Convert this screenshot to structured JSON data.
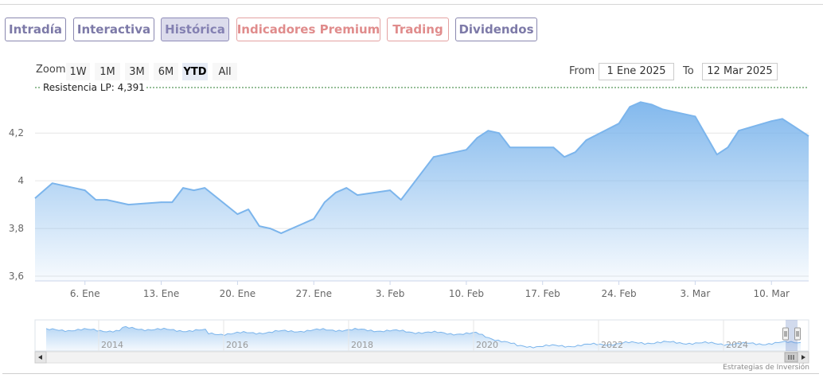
{
  "tabs": [
    {
      "label": "Intradía"
    },
    {
      "label": "Interactiva"
    },
    {
      "label": "Histórica"
    },
    {
      "label": "Indicadores Premium"
    },
    {
      "label": "Trading"
    },
    {
      "label": "Dividendos"
    }
  ],
  "active_tab": "Histórica",
  "range_selector": {
    "zoom_label": "Zoom",
    "buttons": [
      "1W",
      "1M",
      "3M",
      "6M",
      "YTD",
      "All"
    ],
    "active": "YTD",
    "from_label": "From",
    "from_value": "1 Ene 2025",
    "to_label": "To",
    "to_value": "12 Mar 2025"
  },
  "credits": "Estrategias de Inversión",
  "colors": {
    "series_line": "#7cb5ec",
    "tab_text": "#7d7aa8",
    "tab_premium_text": "#e08c8c",
    "resistance_line": "#2e7d32"
  },
  "chart_data": {
    "type": "area",
    "x_unit": "date",
    "y_tick_labels": [
      "3,6",
      "3,8",
      "4",
      "4,2"
    ],
    "y_ticks": [
      3.6,
      3.8,
      4.0,
      4.2
    ],
    "ylim": [
      3.58,
      4.391
    ],
    "x_tick_labels": [
      "6. Ene",
      "13. Ene",
      "20. Ene",
      "27. Ene",
      "3. Feb",
      "10. Feb",
      "17. Feb",
      "24. Feb",
      "3. Mar",
      "10. Mar"
    ],
    "x_ticks": [
      "2025-01-06",
      "2025-01-13",
      "2025-01-20",
      "2025-01-27",
      "2025-02-03",
      "2025-02-10",
      "2025-02-17",
      "2025-02-24",
      "2025-03-03",
      "2025-03-10"
    ],
    "grid": true,
    "annotation": {
      "label": "Resistencia LP: 4,391",
      "value": 4.391
    },
    "series": [
      {
        "x": [
          "2025-01-02",
          "2025-01-03",
          "2025-01-06",
          "2025-01-07",
          "2025-01-08",
          "2025-01-09",
          "2025-01-10",
          "2025-01-13",
          "2025-01-14",
          "2025-01-15",
          "2025-01-16",
          "2025-01-17",
          "2025-01-20",
          "2025-01-21",
          "2025-01-22",
          "2025-01-23",
          "2025-01-24",
          "2025-01-27",
          "2025-01-28",
          "2025-01-29",
          "2025-01-30",
          "2025-01-31",
          "2025-02-03",
          "2025-02-04",
          "2025-02-05",
          "2025-02-06",
          "2025-02-07",
          "2025-02-10",
          "2025-02-11",
          "2025-02-12",
          "2025-02-13",
          "2025-02-14",
          "2025-02-17",
          "2025-02-18",
          "2025-02-19",
          "2025-02-20",
          "2025-02-21",
          "2025-02-24",
          "2025-02-25",
          "2025-02-26",
          "2025-02-27",
          "2025-02-28",
          "2025-03-03",
          "2025-03-04",
          "2025-03-05",
          "2025-03-06",
          "2025-03-07",
          "2025-03-10",
          "2025-03-11",
          "2025-03-12"
        ],
        "values": [
          3.95,
          3.99,
          3.96,
          3.92,
          3.92,
          3.91,
          3.9,
          3.91,
          3.91,
          3.97,
          3.96,
          3.97,
          3.86,
          3.88,
          3.81,
          3.8,
          3.78,
          3.84,
          3.91,
          3.95,
          3.97,
          3.94,
          3.96,
          3.92,
          3.98,
          4.04,
          4.1,
          4.13,
          4.18,
          4.21,
          4.2,
          4.14,
          4.14,
          4.14,
          4.1,
          4.12,
          4.17,
          4.24,
          4.31,
          4.33,
          4.32,
          4.3,
          4.27,
          4.19,
          4.11,
          4.14,
          4.21,
          4.25,
          4.26,
          4.23
        ]
      }
    ]
  },
  "navigator": {
    "year_labels": [
      "2014",
      "2016",
      "2018",
      "2020",
      "2022",
      "2024"
    ]
  }
}
